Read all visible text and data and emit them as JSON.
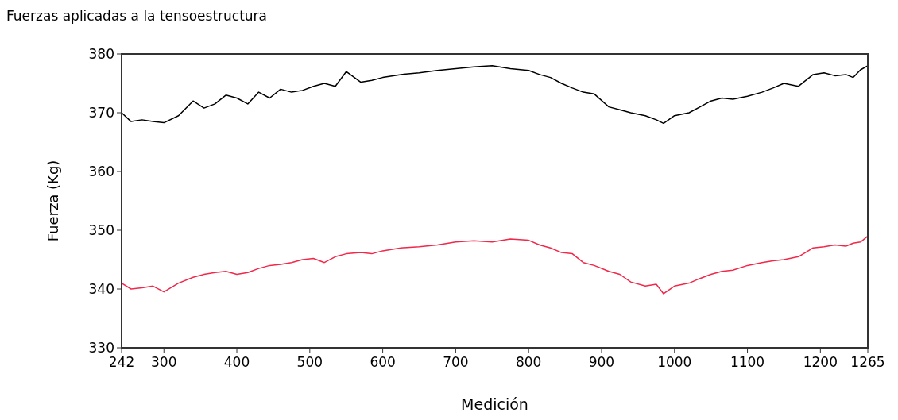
{
  "chart_data": {
    "type": "line",
    "title": "Fuerzas aplicadas a la tensoestructura",
    "xlabel": "Medición",
    "ylabel": "Fuerza (Kg)",
    "xlim": [
      242,
      1265
    ],
    "xticks": [
      242,
      300,
      400,
      500,
      600,
      700,
      800,
      900,
      1000,
      1100,
      1200,
      1265
    ],
    "ylim": [
      330,
      380
    ],
    "yticks": [
      330,
      340,
      350,
      360,
      370,
      380
    ],
    "grid": false,
    "series": [
      {
        "color": "#000000",
        "x": [
          242,
          255,
          270,
          285,
          300,
          320,
          340,
          355,
          370,
          385,
          400,
          415,
          430,
          445,
          460,
          475,
          490,
          505,
          520,
          535,
          550,
          570,
          585,
          600,
          625,
          650,
          675,
          700,
          725,
          750,
          775,
          800,
          815,
          830,
          845,
          860,
          875,
          890,
          910,
          925,
          940,
          960,
          975,
          985,
          1000,
          1020,
          1035,
          1050,
          1065,
          1080,
          1100,
          1120,
          1135,
          1150,
          1170,
          1190,
          1205,
          1220,
          1235,
          1245,
          1255,
          1265
        ],
        "values": [
          370,
          368.5,
          368.8,
          368.5,
          368.3,
          369.5,
          372,
          370.8,
          371.5,
          373,
          372.5,
          371.5,
          373.5,
          372.5,
          374,
          373.5,
          373.8,
          374.5,
          375,
          374.5,
          377,
          375.2,
          375.5,
          376,
          376.5,
          376.8,
          377.2,
          377.5,
          377.8,
          378,
          377.5,
          377.2,
          376.5,
          376,
          375,
          374.2,
          373.5,
          373.2,
          371,
          370.5,
          370,
          369.5,
          368.8,
          368.2,
          369.5,
          370,
          371,
          372,
          372.5,
          372.3,
          372.8,
          373.5,
          374.2,
          375,
          374.5,
          376.5,
          376.8,
          376.3,
          376.5,
          376,
          377.3,
          378
        ]
      },
      {
        "color": "#f0284a",
        "x": [
          242,
          255,
          270,
          285,
          300,
          320,
          340,
          355,
          370,
          385,
          400,
          415,
          430,
          445,
          460,
          475,
          490,
          505,
          520,
          535,
          550,
          570,
          585,
          600,
          625,
          650,
          675,
          700,
          725,
          750,
          775,
          800,
          815,
          830,
          845,
          860,
          875,
          890,
          910,
          925,
          940,
          960,
          975,
          985,
          1000,
          1020,
          1035,
          1050,
          1065,
          1080,
          1100,
          1120,
          1135,
          1150,
          1170,
          1190,
          1205,
          1220,
          1235,
          1245,
          1255,
          1265
        ],
        "values": [
          341,
          340,
          340.2,
          340.5,
          339.5,
          341,
          342,
          342.5,
          342.8,
          343,
          342.5,
          342.8,
          343.5,
          344,
          344.2,
          344.5,
          345,
          345.2,
          344.5,
          345.5,
          346,
          346.2,
          346,
          346.5,
          347,
          347.2,
          347.5,
          348,
          348.2,
          348,
          348.5,
          348.3,
          347.5,
          347,
          346.2,
          346,
          344.5,
          344,
          343,
          342.5,
          341.2,
          340.5,
          340.8,
          339.2,
          340.5,
          341,
          341.8,
          342.5,
          343,
          343.2,
          344,
          344.5,
          344.8,
          345,
          345.5,
          347,
          347.2,
          347.5,
          347.3,
          347.8,
          348,
          349
        ]
      }
    ]
  }
}
